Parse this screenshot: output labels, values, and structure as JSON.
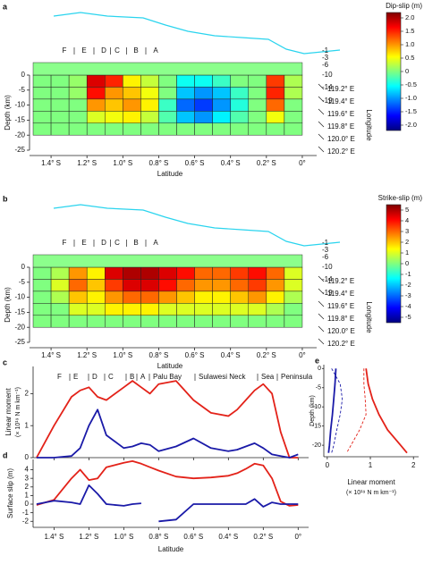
{
  "chart_data": [
    {
      "type": "heatmap",
      "label": "a",
      "colorbar_title": "Dip-slip (m)",
      "clim": [
        -2.2,
        2.2
      ],
      "cticks": [
        {
          "value": 2,
          "label": "2.0"
        },
        1.5,
        {
          "value": 1,
          "label": "1.0"
        },
        0.5,
        0,
        -0.5,
        {
          "value": -1,
          "label": "-1.0"
        },
        -1.5,
        {
          "value": -2,
          "label": "-2.0"
        }
      ],
      "colormap": [
        "#00007f",
        "#0000ff",
        "#007fff",
        "#00ffff",
        "#80ff80",
        "#ffff00",
        "#ff7f00",
        "#ff0000",
        "#7f0000"
      ],
      "x": [
        -1.45,
        -1.35,
        -1.25,
        -1.15,
        -1.05,
        -0.95,
        -0.85,
        -0.75,
        -0.65,
        -0.55,
        -0.45,
        -0.35,
        -0.25,
        -0.15,
        -0.05
      ],
      "y": [
        -2,
        -6,
        -10,
        -14,
        -18
      ],
      "z": [
        [
          0,
          0,
          0.1,
          1.8,
          1.5,
          0.6,
          0.3,
          0,
          -0.5,
          -0.5,
          -0.3,
          0,
          0,
          1.4,
          0.2
        ],
        [
          0,
          0,
          0.1,
          1.6,
          1.0,
          0.8,
          0.5,
          0,
          -0.8,
          -1.0,
          -0.8,
          -0.3,
          0,
          1.5,
          0.2
        ],
        [
          0,
          0,
          0,
          1.0,
          0.8,
          1.0,
          0.6,
          -0.3,
          -1.2,
          -1.4,
          -1.0,
          -0.4,
          0,
          1.2,
          0
        ],
        [
          0,
          0,
          0,
          0.4,
          0.5,
          0.6,
          0.3,
          -0.2,
          -0.8,
          -1.0,
          -0.6,
          -0.2,
          0,
          0.5,
          0
        ],
        [
          0,
          0,
          0,
          0,
          0,
          0,
          0,
          0,
          0,
          0,
          0,
          0,
          0,
          0,
          0
        ]
      ],
      "xlabel": "Latitude",
      "ylabel": "Depth (km)",
      "xlim": [
        -1.52,
        0.08
      ],
      "xticks": [
        {
          "value": -1.4,
          "label": "1.4° S"
        },
        {
          "value": -1.2,
          "label": "1.2° S"
        },
        {
          "value": -1,
          "label": "1.0° S"
        },
        {
          "value": -0.8,
          "label": "0.8° S"
        },
        {
          "value": -0.6,
          "label": "0.6° S"
        },
        {
          "value": -0.4,
          "label": "0.4° S"
        },
        {
          "value": -0.2,
          "label": "0.2° S"
        },
        {
          "value": 0,
          "label": "0°"
        }
      ],
      "ylim": [
        -25,
        0
      ],
      "yticks": [
        0,
        -5,
        -10,
        -15,
        -20,
        -25
      ],
      "segments": [
        "F",
        "E",
        "D",
        "C",
        "B",
        "A"
      ],
      "depth_labels": [
        -1,
        -3,
        -6,
        -10,
        -14,
        -19
      ],
      "longitude_labels": [
        "119.2° E",
        "119.4° E",
        "119.6° E",
        "119.8° E",
        "120.0° E",
        "120.2° E"
      ],
      "longitude_title": "Longitude"
    },
    {
      "type": "heatmap",
      "label": "b",
      "colorbar_title": "Strike-slip (m)",
      "clim": [
        -5.5,
        5.5
      ],
      "cticks": [
        5,
        4,
        3,
        2,
        1,
        0,
        -1,
        -2,
        -3,
        -4,
        -5
      ],
      "colormap": [
        "#00007f",
        "#0000ff",
        "#007fff",
        "#00ffff",
        "#80ff80",
        "#ffff00",
        "#ff7f00",
        "#ff0000",
        "#7f0000"
      ],
      "x": [
        -1.45,
        -1.35,
        -1.25,
        -1.15,
        -1.05,
        -0.95,
        -0.85,
        -0.75,
        -0.65,
        -0.55,
        -0.45,
        -0.35,
        -0.25,
        -0.15,
        -0.05
      ],
      "y": [
        -2,
        -6,
        -10,
        -14,
        -18
      ],
      "z": [
        [
          0,
          0.5,
          2.5,
          1.5,
          4.5,
          5,
          5,
          4.5,
          4,
          3,
          3,
          3.5,
          4,
          3,
          1
        ],
        [
          0,
          1,
          3,
          2,
          3.5,
          4.5,
          4.5,
          4,
          3,
          2.5,
          2.5,
          3,
          3.5,
          2.5,
          1
        ],
        [
          0,
          0.5,
          2,
          1.5,
          2.5,
          3,
          3,
          2.5,
          2,
          1.5,
          1.5,
          2,
          2.5,
          1.5,
          0.5
        ],
        [
          0,
          0,
          1,
          1,
          1.5,
          1.5,
          1.5,
          1,
          1,
          1,
          1,
          1,
          1,
          0.5,
          0
        ],
        [
          0,
          0,
          0,
          0,
          0,
          0,
          0,
          0,
          0,
          0,
          0,
          0,
          0,
          0,
          0
        ]
      ],
      "xlabel": "Latitude",
      "ylabel": "Depth (km)",
      "xlim": [
        -1.52,
        0.08
      ],
      "xticks": [
        {
          "value": -1.4,
          "label": "1.4° S"
        },
        {
          "value": -1.2,
          "label": "1.2° S"
        },
        {
          "value": -1,
          "label": "1.0° S"
        },
        {
          "value": -0.8,
          "label": "0.8° S"
        },
        {
          "value": -0.6,
          "label": "0.6° S"
        },
        {
          "value": -0.4,
          "label": "0.4° S"
        },
        {
          "value": -0.2,
          "label": "0.2° S"
        },
        {
          "value": 0,
          "label": "0°"
        }
      ],
      "ylim": [
        -25,
        0
      ],
      "yticks": [
        0,
        -5,
        -10,
        -15,
        -20,
        -25
      ],
      "segments": [
        "F",
        "E",
        "D",
        "C",
        "B",
        "A"
      ],
      "depth_labels": [
        -1,
        -3,
        -6,
        -10,
        -14,
        -19
      ],
      "longitude_labels": [
        "119.2° E",
        "119.4° E",
        "119.6° E",
        "119.8° E",
        "120.0° E",
        "120.2° E"
      ],
      "longitude_title": "Longitude"
    },
    {
      "type": "line",
      "label": "c",
      "ylabel": "Linear moment",
      "ylabel_units": "(× 10¹⁹ N m km⁻¹)",
      "xlim": [
        -1.52,
        0.06
      ],
      "ylim": [
        0,
        2.85
      ],
      "yticks": [
        0,
        1,
        2
      ],
      "xticks": [
        -1.4,
        -1.2,
        -1,
        -0.8,
        -0.6,
        -0.4,
        -0.2,
        0
      ],
      "segments": [
        "F",
        "E",
        "D",
        "C",
        "B",
        "A",
        "Palu Bay",
        "Sulawesi Neck",
        "Sea",
        "Peninsula"
      ],
      "x": [
        -1.5,
        -1.4,
        -1.3,
        -1.25,
        -1.2,
        -1.15,
        -1.1,
        -1.0,
        -0.95,
        -0.9,
        -0.85,
        -0.8,
        -0.7,
        -0.6,
        -0.5,
        -0.4,
        -0.35,
        -0.3,
        -0.25,
        -0.2,
        -0.15,
        -0.1,
        -0.05,
        0
      ],
      "series": [
        {
          "color": "#e32219",
          "values": [
            0,
            1.0,
            1.9,
            2.1,
            2.2,
            1.9,
            1.8,
            2.2,
            2.4,
            2.2,
            2.0,
            2.3,
            2.4,
            1.8,
            1.4,
            1.3,
            1.5,
            1.8,
            2.1,
            2.3,
            2.0,
            0.8,
            0,
            0
          ]
        },
        {
          "color": "#1a1aa8",
          "values": [
            0,
            0,
            0.05,
            0.3,
            1.0,
            1.5,
            0.7,
            0.3,
            0.35,
            0.45,
            0.4,
            0.2,
            0.35,
            0.6,
            0.3,
            0.2,
            0.25,
            0.35,
            0.45,
            0.3,
            0.1,
            0.05,
            0,
            0.1
          ]
        }
      ]
    },
    {
      "type": "line",
      "label": "d",
      "ylabel": "Surface slip (m)",
      "xlabel": "Latitude",
      "xlim": [
        -1.52,
        0.06
      ],
      "ylim": [
        -2.7,
        5.2
      ],
      "yticks": [
        -2,
        -1,
        0,
        1,
        2,
        3,
        4
      ],
      "xticks": [
        {
          "value": -1.4,
          "label": "1.4° S"
        },
        {
          "value": -1.2,
          "label": "1.2° S"
        },
        {
          "value": -1,
          "label": "1.0° S"
        },
        {
          "value": -0.8,
          "label": "0.8° S"
        },
        {
          "value": -0.6,
          "label": "0.6° S"
        },
        {
          "value": -0.4,
          "label": "0.4° S"
        },
        {
          "value": -0.2,
          "label": "0.2° S"
        },
        {
          "value": 0,
          "label": "0°"
        }
      ],
      "x": [
        -1.5,
        -1.4,
        -1.3,
        -1.25,
        -1.2,
        -1.15,
        -1.1,
        -1.0,
        -0.95,
        -0.9,
        -0.85,
        -0.8,
        -0.7,
        -0.6,
        -0.5,
        -0.4,
        -0.35,
        -0.3,
        -0.25,
        -0.2,
        -0.15,
        -0.1,
        -0.05,
        0
      ],
      "series": [
        {
          "color": "#e32219",
          "values": [
            -0.1,
            0.5,
            3.0,
            4.0,
            2.8,
            3.0,
            4.3,
            4.8,
            5.0,
            4.7,
            4.3,
            3.9,
            3.2,
            3.0,
            3.1,
            3.3,
            3.6,
            4.1,
            4.7,
            4.5,
            3.0,
            0.3,
            -0.2,
            -0.1
          ]
        },
        {
          "color": "#1a1aa8",
          "values": [
            0,
            0.4,
            0.2,
            0,
            2.2,
            1.2,
            0,
            -0.2,
            0,
            0.1,
            null,
            -2.0,
            -1.8,
            0,
            0,
            0,
            0,
            0,
            0.6,
            -0.3,
            0.2,
            0,
            0,
            0
          ]
        }
      ]
    },
    {
      "type": "profile",
      "label": "e",
      "ylabel": "Depth (km)",
      "xlabel": "Linear moment",
      "xlabel_units": "(× 10¹⁹ N m km⁻¹)",
      "xlim": [
        -0.08,
        2.12
      ],
      "ylim": [
        -23,
        1
      ],
      "xticks": [
        0,
        1,
        2
      ],
      "yticks": [
        0,
        -5,
        -10,
        -15,
        -20
      ],
      "y": [
        0,
        -4,
        -8,
        -12,
        -16,
        -20,
        -22
      ],
      "series": [
        {
          "color": "#e32219",
          "dash": false,
          "values": [
            0.9,
            0.95,
            1.05,
            1.2,
            1.4,
            1.7,
            1.85
          ]
        },
        {
          "color": "#e32219",
          "dash": true,
          "values": [
            0.85,
            0.85,
            0.88,
            0.9,
            0.75,
            0.55,
            0.45
          ]
        },
        {
          "color": "#1a1aa8",
          "dash": false,
          "values": [
            0.2,
            0.18,
            0.15,
            0.12,
            0.08,
            0.05,
            0.03
          ]
        },
        {
          "color": "#1a1aa8",
          "dash": true,
          "values": [
            0.1,
            0.3,
            0.35,
            0.3,
            0.22,
            0.15,
            0.1
          ]
        }
      ]
    }
  ]
}
